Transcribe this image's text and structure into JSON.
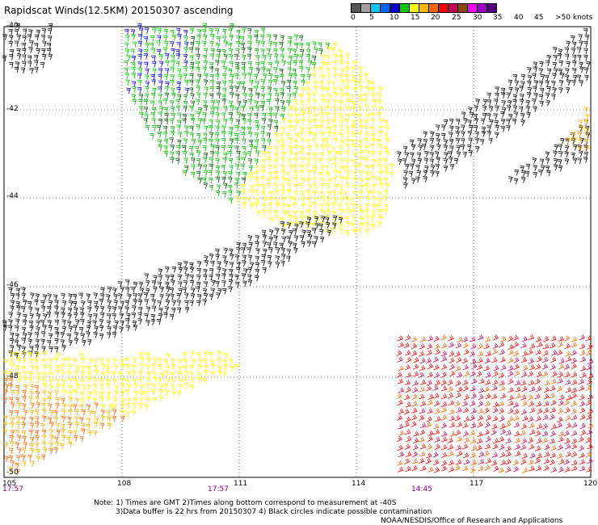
{
  "title": "Rapidscat Winds(12.5KM) 20150307 ascending",
  "scale": {
    "colors": [
      "#555555",
      "#a0a0a0",
      "#00c8ff",
      "#0064ff",
      "#0000c8",
      "#00c800",
      "#ffff00",
      "#ffb400",
      "#ff6400",
      "#ff0000",
      "#c80050",
      "#8b4513",
      "#ff00ff",
      "#a000c8",
      "#500080"
    ],
    "labels": [
      "0",
      "5",
      "10",
      "15",
      "20",
      "25",
      "30",
      "35",
      "40",
      "45",
      ">50 knots"
    ]
  },
  "lat_labels": [
    "-40",
    "-42",
    "-44",
    "-46",
    "-48",
    "-50"
  ],
  "lon_labels": [
    "105",
    "108",
    "111",
    "114",
    "117",
    "120"
  ],
  "times": [
    "17:57",
    "17:57",
    "14:45"
  ],
  "notes": {
    "line1": "Note: 1) Times are GMT 2)Times along bottom correspond to measurement at -40S",
    "line2": "3)Data buffer is 22 hrs from 20150307 4) Black circles indicate possible contamination",
    "line3": "NOAA/NESDIS/Office of Research and Applications"
  }
}
